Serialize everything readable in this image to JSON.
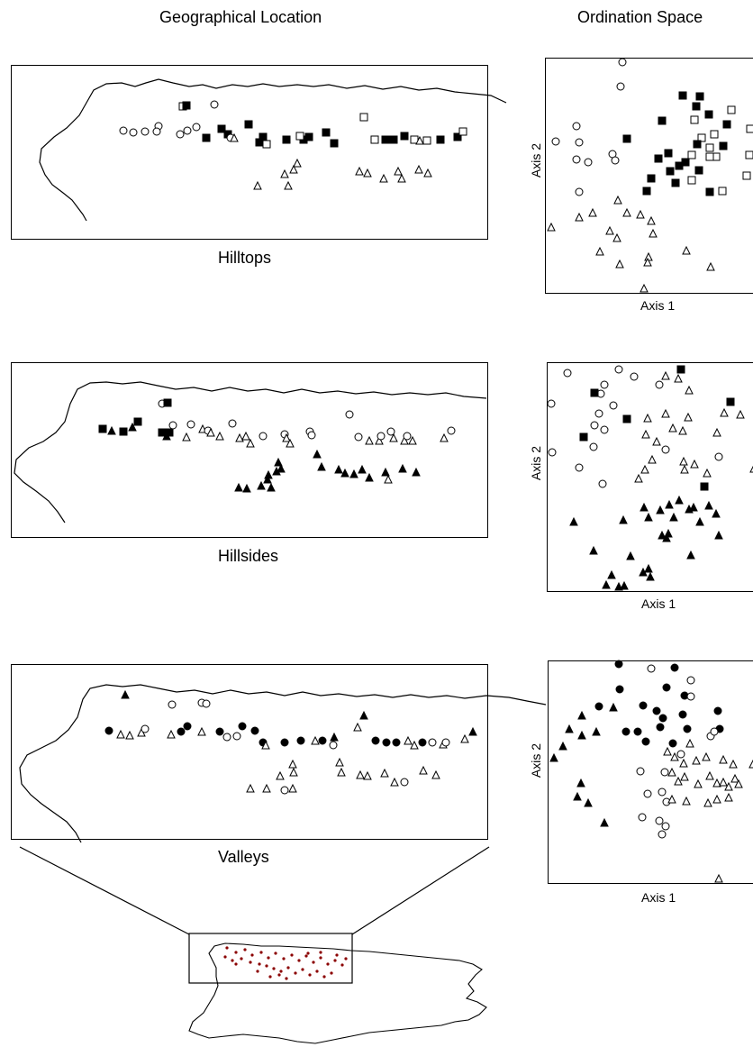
{
  "headers": {
    "geo": "Geographical Location",
    "ord": "Ordination Space"
  },
  "panels": [
    {
      "name": "Hilltops",
      "axis_x": "Axis 1",
      "axis_y": "Axis 2"
    },
    {
      "name": "Hillsides",
      "axis_x": "Axis 1",
      "axis_y": "Axis 2"
    },
    {
      "name": "Valleys",
      "axis_x": "Axis 1",
      "axis_y": "Axis 2"
    }
  ],
  "colors": {
    "line": "#000000",
    "sites": "#8b0000"
  }
}
